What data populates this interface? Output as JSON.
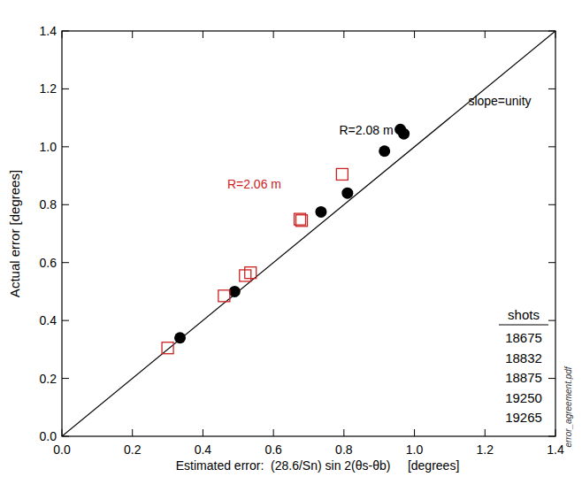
{
  "chart_data": {
    "type": "scatter",
    "xlabel": "Estimated error:  (28.6/Sn) sin 2(θs-θb)     [degrees]",
    "ylabel": "Actual error [degrees]",
    "xlim": [
      0,
      1.4
    ],
    "ylim": [
      0,
      1.4
    ],
    "xticks": [
      {
        "value": 0,
        "label": "0.0"
      },
      0.2,
      0.4,
      0.6,
      0.8,
      {
        "value": 1,
        "label": "1.0"
      },
      1.2,
      1.4
    ],
    "yticks": [
      {
        "value": 0,
        "label": "0.0"
      },
      0.2,
      0.4,
      0.6,
      0.8,
      {
        "value": 1,
        "label": "1.0"
      },
      1.2,
      1.4
    ],
    "grid": false,
    "series": [
      {
        "color": "#000000",
        "marker": "circle",
        "x": [
          0.335,
          0.49,
          0.735,
          0.81,
          0.915,
          0.96,
          0.97
        ],
        "values": [
          0.34,
          0.5,
          0.775,
          0.84,
          0.985,
          1.06,
          1.045
        ]
      },
      {
        "color": "#cc2222",
        "marker": "square-open",
        "x": [
          0.3,
          0.46,
          0.52,
          0.535,
          0.675,
          0.68,
          0.795
        ],
        "values": [
          0.305,
          0.485,
          0.555,
          0.565,
          0.75,
          0.745,
          0.905
        ]
      }
    ],
    "reference_line": {
      "x": [
        0,
        1.4
      ],
      "values": [
        0,
        1.4
      ],
      "color": "#000000",
      "line_style": "solid"
    },
    "annotations": [
      {
        "text": "R=2.08 m",
        "color": "#000000"
      },
      {
        "text": "R=2.06 m",
        "color": "#cc2222"
      },
      {
        "text": "slope=unity",
        "color": "#000000"
      }
    ],
    "shots_title": "shots",
    "shots": [
      "18675",
      "18832",
      "18875",
      "19250",
      "19265"
    ],
    "side_note": "error_agreement.pdf"
  }
}
